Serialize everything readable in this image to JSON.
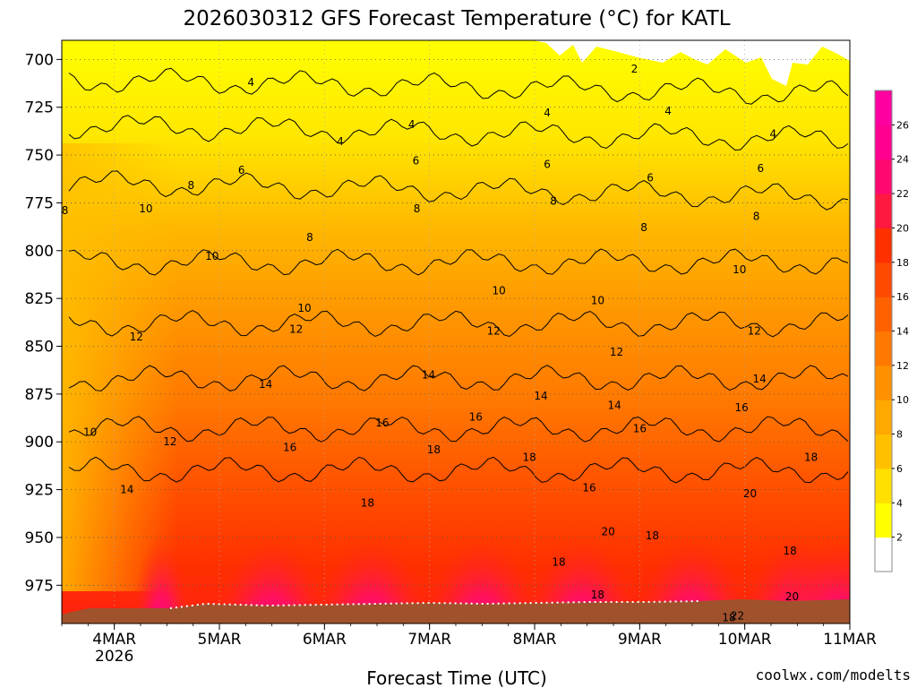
{
  "chart_data": {
    "type": "heatmap",
    "title": "2026030312 GFS Forecast Temperature (°C) for KATL",
    "xlabel": "Forecast Time (UTC)",
    "credit": "coolwx.com/modelts",
    "x_range_days_since_mar3": [
      0.5,
      8.0
    ],
    "y_levels": [
      700,
      725,
      750,
      775,
      800,
      825,
      850,
      875,
      900,
      925,
      950,
      975
    ],
    "ylim": [
      690,
      995
    ],
    "x_ticks": [
      {
        "day": 1,
        "label": "4MAR",
        "sublabel": "2026"
      },
      {
        "day": 2,
        "label": "5MAR",
        "sublabel": ""
      },
      {
        "day": 3,
        "label": "6MAR",
        "sublabel": ""
      },
      {
        "day": 4,
        "label": "7MAR",
        "sublabel": ""
      },
      {
        "day": 5,
        "label": "8MAR",
        "sublabel": ""
      },
      {
        "day": 6,
        "label": "9MAR",
        "sublabel": ""
      },
      {
        "day": 7,
        "label": "10MAR",
        "sublabel": ""
      },
      {
        "day": 8,
        "label": "11MAR",
        "sublabel": ""
      }
    ],
    "contour_levels": [
      2,
      4,
      6,
      8,
      10,
      12,
      14,
      16,
      18,
      20,
      22,
      24,
      26
    ],
    "colorbar_labels": [
      "2",
      "4",
      "6",
      "8",
      "10",
      "12",
      "14",
      "16",
      "18",
      "20",
      "22",
      "24",
      "26"
    ],
    "colorbar_colors": [
      "#ffffff",
      "#ffff00",
      "#ffe000",
      "#ffc000",
      "#ffa800",
      "#ff9000",
      "#ff7800",
      "#ff6000",
      "#ff4800",
      "#ff3000",
      "#ff1840",
      "#ff0870",
      "#ff0090",
      "#ff00a0"
    ],
    "contour_labels": [
      {
        "text": "2",
        "day": 5.95,
        "p": 705
      },
      {
        "text": "4",
        "day": 2.3,
        "p": 712
      },
      {
        "text": "4",
        "day": 3.15,
        "p": 743
      },
      {
        "text": "4",
        "day": 3.83,
        "p": 734
      },
      {
        "text": "4",
        "day": 5.12,
        "p": 728
      },
      {
        "text": "4",
        "day": 6.27,
        "p": 727
      },
      {
        "text": "4",
        "day": 7.27,
        "p": 739
      },
      {
        "text": "6",
        "day": 2.21,
        "p": 758
      },
      {
        "text": "6",
        "day": 3.87,
        "p": 753
      },
      {
        "text": "6",
        "day": 5.12,
        "p": 755
      },
      {
        "text": "6",
        "day": 6.1,
        "p": 762
      },
      {
        "text": "6",
        "day": 7.15,
        "p": 757
      },
      {
        "text": "8",
        "day": 0.53,
        "p": 779
      },
      {
        "text": "8",
        "day": 1.73,
        "p": 766
      },
      {
        "text": "8",
        "day": 2.86,
        "p": 793
      },
      {
        "text": "8",
        "day": 3.88,
        "p": 778
      },
      {
        "text": "8",
        "day": 5.18,
        "p": 774
      },
      {
        "text": "8",
        "day": 6.04,
        "p": 788
      },
      {
        "text": "8",
        "day": 7.11,
        "p": 782
      },
      {
        "text": "10",
        "day": 1.3,
        "p": 778
      },
      {
        "text": "10",
        "day": 1.93,
        "p": 803
      },
      {
        "text": "10",
        "day": 2.81,
        "p": 830
      },
      {
        "text": "10",
        "day": 4.66,
        "p": 821
      },
      {
        "text": "10",
        "day": 5.6,
        "p": 826
      },
      {
        "text": "10",
        "day": 6.95,
        "p": 810
      },
      {
        "text": "12",
        "day": 1.21,
        "p": 845
      },
      {
        "text": "12",
        "day": 2.73,
        "p": 841
      },
      {
        "text": "12",
        "day": 4.61,
        "p": 842
      },
      {
        "text": "12",
        "day": 5.78,
        "p": 853
      },
      {
        "text": "12",
        "day": 7.09,
        "p": 842
      },
      {
        "text": "14",
        "day": 2.44,
        "p": 870
      },
      {
        "text": "14",
        "day": 3.99,
        "p": 865
      },
      {
        "text": "14",
        "day": 5.06,
        "p": 876
      },
      {
        "text": "14",
        "day": 5.76,
        "p": 881
      },
      {
        "text": "14",
        "day": 7.14,
        "p": 867
      },
      {
        "text": "14",
        "day": 1.12,
        "p": 925
      },
      {
        "text": "16",
        "day": 3.55,
        "p": 890
      },
      {
        "text": "16",
        "day": 4.44,
        "p": 887
      },
      {
        "text": "16",
        "day": 2.67,
        "p": 903
      },
      {
        "text": "16",
        "day": 6.0,
        "p": 893
      },
      {
        "text": "16",
        "day": 6.97,
        "p": 882
      },
      {
        "text": "16",
        "day": 5.52,
        "p": 924
      },
      {
        "text": "18",
        "day": 4.04,
        "p": 904
      },
      {
        "text": "18",
        "day": 4.95,
        "p": 908
      },
      {
        "text": "18",
        "day": 3.41,
        "p": 932
      },
      {
        "text": "18",
        "day": 6.12,
        "p": 949
      },
      {
        "text": "18",
        "day": 5.23,
        "p": 963
      },
      {
        "text": "18",
        "day": 5.6,
        "p": 980
      },
      {
        "text": "18",
        "day": 7.43,
        "p": 957
      },
      {
        "text": "18",
        "day": 7.63,
        "p": 908
      },
      {
        "text": "18",
        "day": 6.85,
        "p": 992
      },
      {
        "text": "20",
        "day": 5.7,
        "p": 947
      },
      {
        "text": "20",
        "day": 7.05,
        "p": 927
      },
      {
        "text": "20",
        "day": 7.45,
        "p": 981
      },
      {
        "text": "22",
        "day": 6.93,
        "p": 991
      },
      {
        "text": "10",
        "day": 0.77,
        "p": 895
      },
      {
        "text": "12",
        "day": 1.53,
        "p": 900
      }
    ]
  }
}
